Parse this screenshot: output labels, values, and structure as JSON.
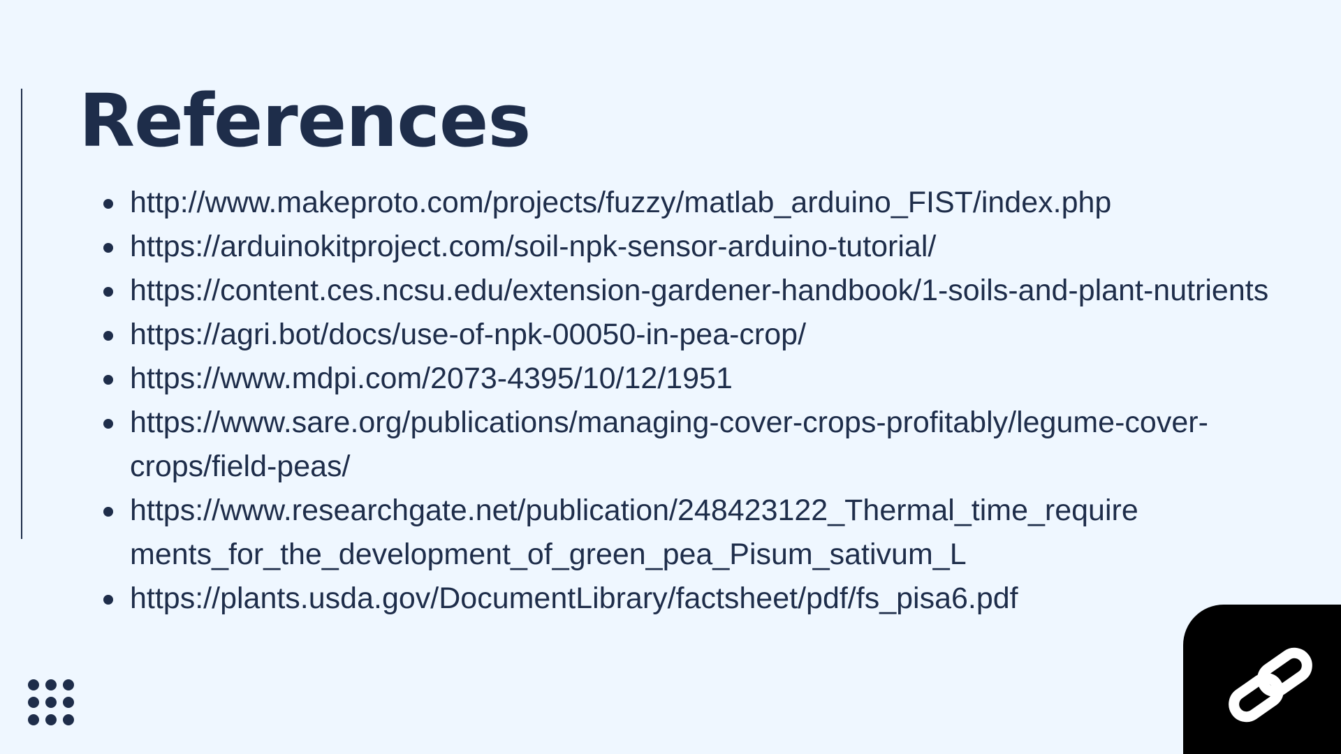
{
  "slide": {
    "title": "References",
    "references": [
      "http://www.makeproto.com/projects/fuzzy/matlab_arduino_FIST/index.php",
      "https://arduinokitproject.com/soil-npk-sensor-arduino-tutorial/",
      "https://content.ces.ncsu.edu/extension-gardener-handbook/1-soils-and-​plant-nutrients",
      "https://agri.bot/docs/use-of-npk-00050-in-pea-crop/",
      "https://www.mdpi.com/2073-4395/10/12/1951",
      "https://www.sare.org/publications/managing-cover-crops-​profitably/legume-cover-crops/field-peas/",
      "https://www.researchgate.net/publication/248423122_Thermal_time_require​ments_for_the_development_of_green_pea_Pisum_sativum_L",
      "https://plants.usda.gov/DocumentLibrary/factsheet/pdf/fs_pisa6.pdf"
    ]
  },
  "icons": {
    "bottom_left": "dot-grid-icon",
    "bottom_right": "chain-link-icon"
  },
  "colors": {
    "background": "#eff7ff",
    "text": "#1e2d4a",
    "link_box": "#000000",
    "link_icon": "#ffffff"
  }
}
